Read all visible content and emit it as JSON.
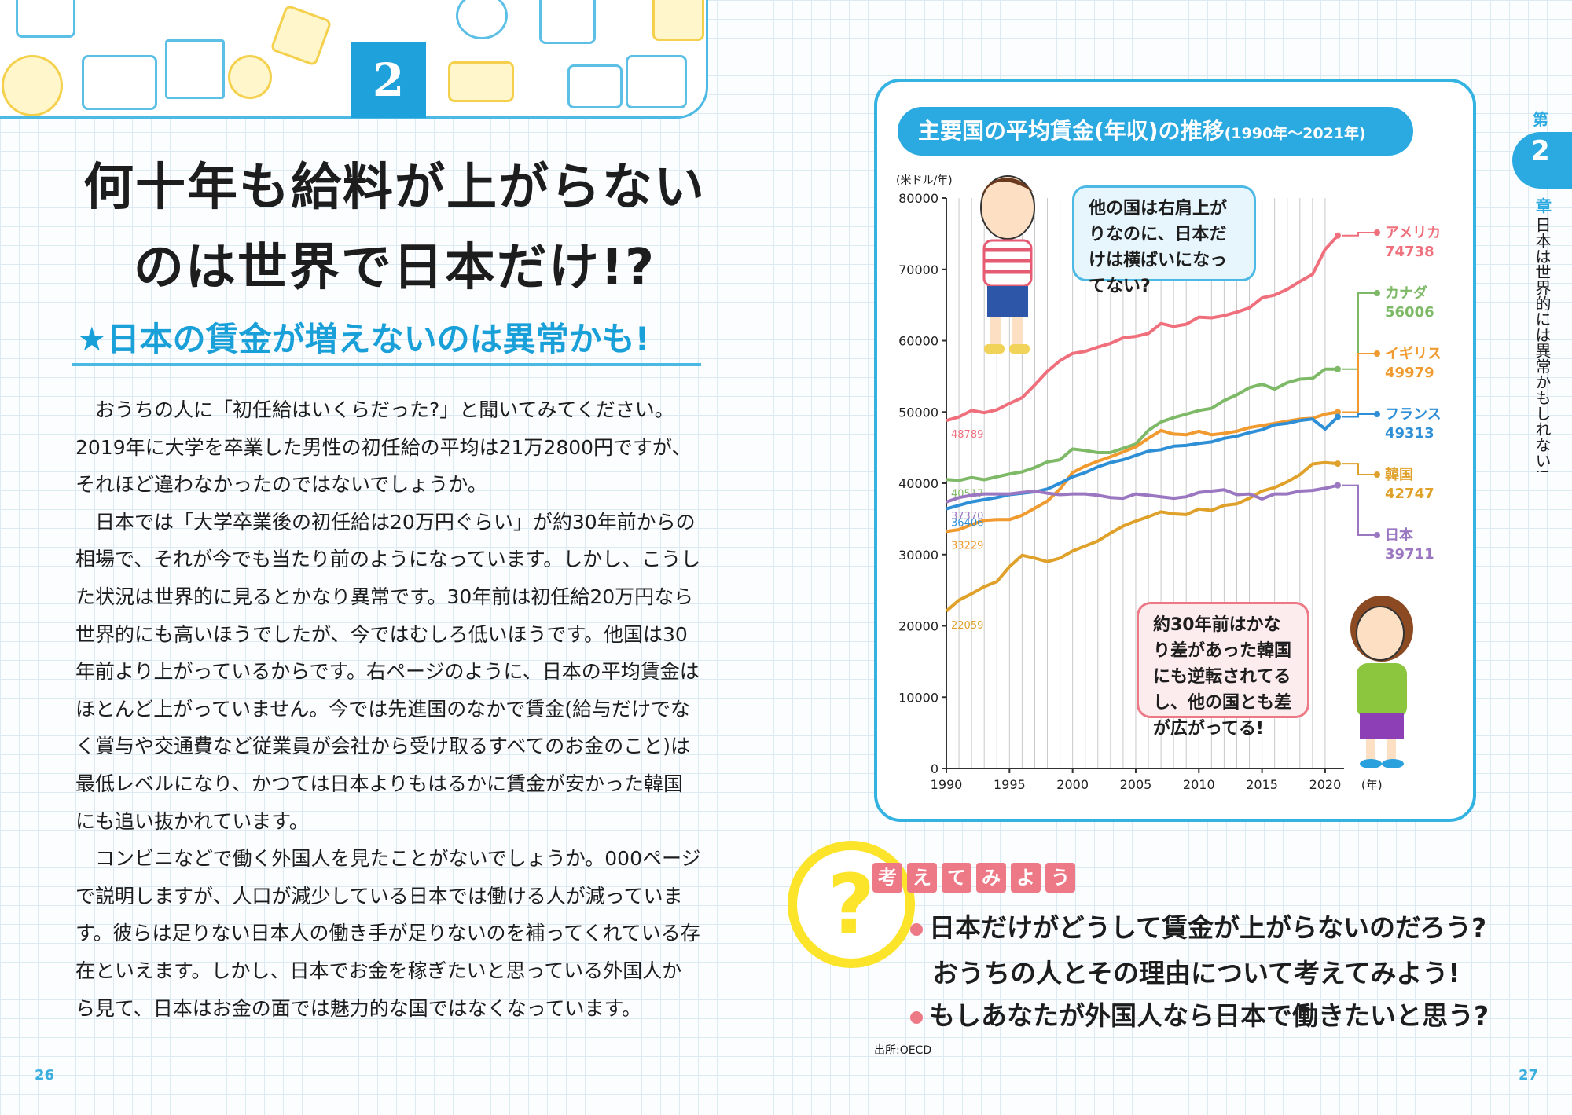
{
  "header": {
    "chapter_number": "2"
  },
  "title": {
    "line1": "何十年も給料が上がらない",
    "line2": "のは世界で日本だけ!?"
  },
  "subtitle": "★日本の賃金が増えないのは異常かも!",
  "body": [
    "おうちの人に「初任給はいくらだった?」と聞いてみてください。2019年に大学を卒業した男性の初任給の平均は21万2800円ですが、それほど違わなかったのではないでしょうか。",
    "日本では「大学卒業後の初任給は20万円ぐらい」が約30年前からの相場で、それが今でも当たり前のようになっています。しかし、こうした状況は世界的に見るとかなり異常です。30年前は初任給20万円なら世界的にも高いほうでしたが、今ではむしろ低いほうです。他国は30年前より上がっているからです。右ページのように、日本の平均賃金はほとんど上がっていません。今では先進国のなかで賃金(給与だけでなく賞与や交通費など従業員が会社から受け取るすべてのお金のこと)は最低レベルになり、かつては日本よりもはるかに賃金が安かった韓国にも追い抜かれています。",
    "コンビニなどで働く外国人を見たことがないでしょうか。000ページで説明しますが、人口が減少している日本では働ける人が減っています。彼らは足りない日本人の働き手が足りないのを補ってくれている存在といえます。しかし、日本でお金を稼ぎたいと思っている外国人から見て、日本はお金の面では魅力的な国ではなくなっています。"
  ],
  "page_left": "26",
  "page_right": "27",
  "chart_box": {
    "title": "主要国の平均賃金(年収)の推移",
    "title_range": "(1990年〜2021年)",
    "bubble_boy": "他の国は右肩上がりなのに、日本だけは横ばいになってない?",
    "bubble_girl": "約30年前はかなり差があった韓国にも逆転されてるし、他の国とも差が広がってる!",
    "source": "出所:OECD"
  },
  "chart_data": {
    "type": "line",
    "ylabel": "(米ドル/年)",
    "xunit": "(年)",
    "ylim": [
      0,
      80000
    ],
    "xlim": [
      1990,
      2021
    ],
    "yticks": [
      "0",
      "10000",
      "20000",
      "30000",
      "40000",
      "50000",
      "60000",
      "70000",
      "80000"
    ],
    "xticks": [
      "1990",
      "1995",
      "2000",
      "2005",
      "2010",
      "2015",
      "2020"
    ],
    "x": [
      1990,
      1991,
      1992,
      1993,
      1994,
      1995,
      1996,
      1997,
      1998,
      1999,
      2000,
      2001,
      2002,
      2003,
      2004,
      2005,
      2006,
      2007,
      2008,
      2009,
      2010,
      2011,
      2012,
      2013,
      2014,
      2015,
      2016,
      2017,
      2018,
      2019,
      2020,
      2021
    ],
    "series": [
      {
        "name": "アメリカ",
        "end_label": "74738",
        "start_label": "48789",
        "color": "#ef6f7c",
        "values": [
          48789,
          49300,
          50200,
          49900,
          50300,
          51200,
          52000,
          53800,
          55700,
          57200,
          58200,
          58500,
          59100,
          59600,
          60400,
          60600,
          61000,
          62400,
          62000,
          62300,
          63300,
          63200,
          63500,
          64000,
          64600,
          66000,
          66400,
          67200,
          68300,
          69300,
          72800,
          74738
        ]
      },
      {
        "name": "カナダ",
        "end_label": "56006",
        "start_label": "40517",
        "color": "#7db966",
        "values": [
          40517,
          40400,
          40800,
          40500,
          40900,
          41300,
          41600,
          42200,
          43000,
          43300,
          44800,
          44600,
          44300,
          44300,
          44900,
          45500,
          47400,
          48600,
          49200,
          49700,
          50200,
          50500,
          51600,
          52400,
          53400,
          53900,
          53200,
          54100,
          54600,
          54700,
          56006,
          56006
        ]
      },
      {
        "name": "イギリス",
        "end_label": "49979",
        "start_label": "33229",
        "color": "#f19a2f",
        "values": [
          33229,
          33500,
          34200,
          34800,
          34900,
          34900,
          35500,
          36500,
          37500,
          39200,
          41500,
          42400,
          43100,
          43700,
          44400,
          45100,
          46300,
          47400,
          46900,
          46800,
          47300,
          46800,
          47000,
          47300,
          47800,
          48100,
          48400,
          48700,
          49000,
          49100,
          49700,
          49979
        ]
      },
      {
        "name": "フランス",
        "end_label": "49313",
        "start_label": "36406",
        "color": "#2f8fd6",
        "values": [
          36406,
          36900,
          37400,
          37700,
          38000,
          38400,
          38600,
          38800,
          39200,
          40000,
          40900,
          41500,
          42300,
          42900,
          43300,
          43900,
          44500,
          44700,
          45200,
          45300,
          45600,
          45800,
          46300,
          46600,
          47100,
          47500,
          48200,
          48400,
          48800,
          49000,
          47600,
          49313
        ]
      },
      {
        "name": "韓国",
        "end_label": "42747",
        "start_label": "22059",
        "color": "#e0a12b",
        "values": [
          22059,
          23600,
          24500,
          25500,
          26200,
          28300,
          29900,
          29500,
          29000,
          29500,
          30500,
          31200,
          31900,
          33000,
          34000,
          34700,
          35300,
          36000,
          35700,
          35600,
          36400,
          36200,
          36900,
          37100,
          37900,
          38900,
          39400,
          40200,
          41200,
          42700,
          42900,
          42747
        ]
      },
      {
        "name": "日本",
        "end_label": "39711",
        "start_label": "37370",
        "color": "#9a77c0",
        "values": [
          37370,
          38000,
          38300,
          38500,
          38500,
          38500,
          38700,
          38900,
          38600,
          38400,
          38500,
          38500,
          38300,
          38000,
          37900,
          38500,
          38300,
          38100,
          37900,
          38100,
          38700,
          38900,
          39100,
          38400,
          38500,
          37800,
          38500,
          38500,
          38900,
          39000,
          39300,
          39711
        ]
      }
    ]
  },
  "think": {
    "tiles": [
      "考",
      "え",
      "て",
      "み",
      "よ",
      "う"
    ],
    "question_mark": "?",
    "q1_line1": "日本だけがどうして賃金が上がらないのだろう?",
    "q1_line2": "おうちの人とその理由について考えてみよう!",
    "q2": "もしあなたが外国人なら日本で働きたいと思う?"
  },
  "side": {
    "dai": "第",
    "number": "2",
    "sho": "章",
    "text": "日本は世界的には異常かもしれない!"
  }
}
